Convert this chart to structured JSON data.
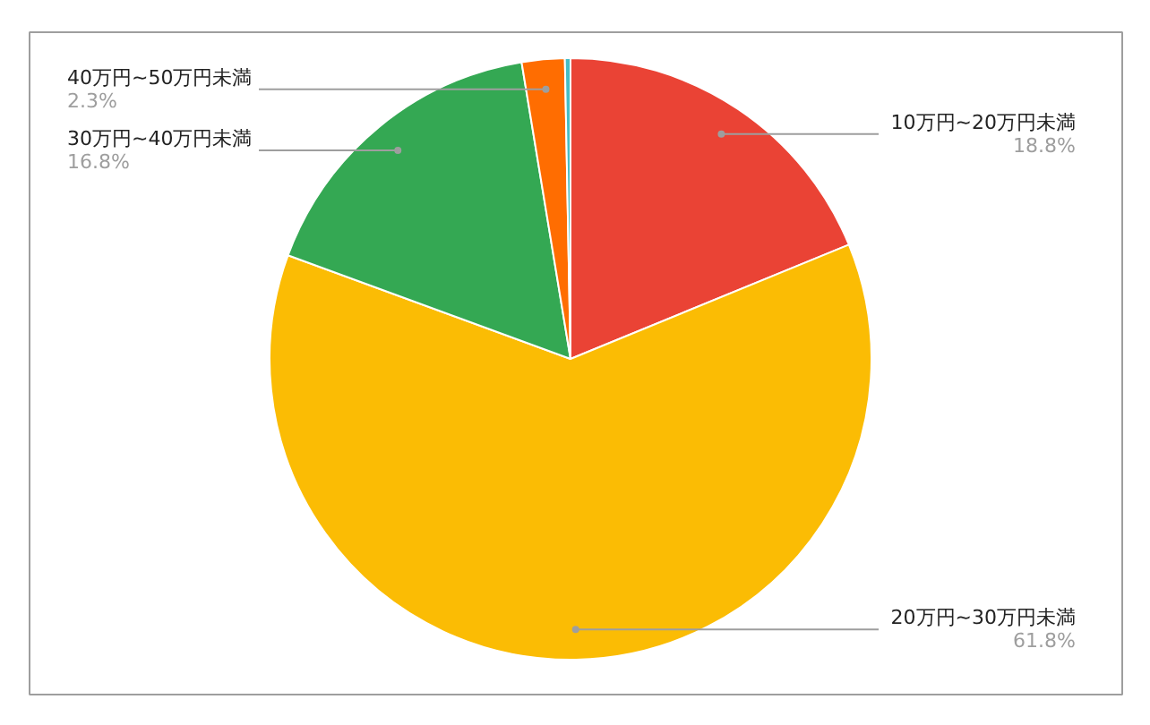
{
  "chart_data": {
    "type": "pie",
    "categories": [
      "10万円~20万円未満",
      "20万円~30万円未満",
      "30万円~40万円未満",
      "40万円~50万円未満",
      null
    ],
    "values": [
      18.8,
      61.8,
      16.8,
      2.3,
      0.3
    ],
    "colors": [
      "#ea4335",
      "#fbbc04",
      "#34a853",
      "#ff6d01",
      "#46bdc6"
    ],
    "value_labels": [
      "18.8%",
      "61.8%",
      "16.8%",
      "2.3%",
      null
    ]
  }
}
